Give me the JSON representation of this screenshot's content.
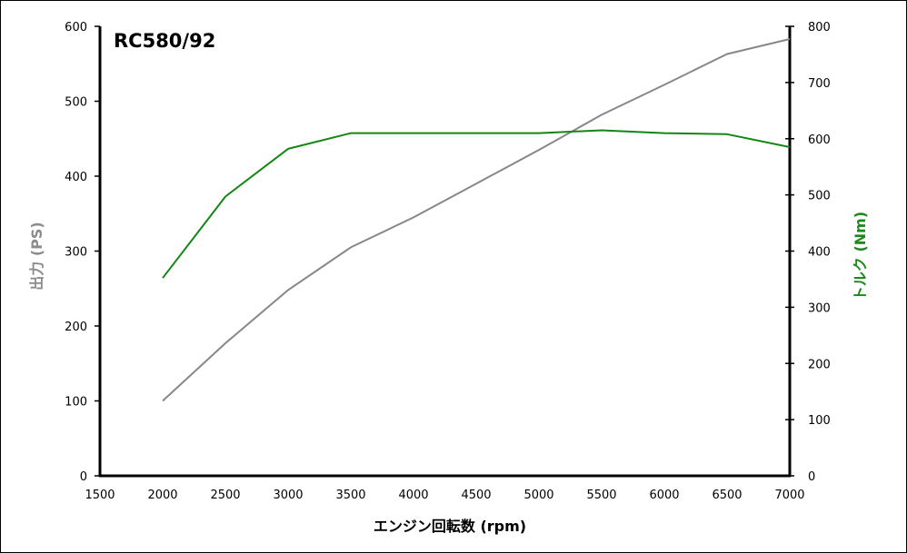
{
  "chart_data": {
    "type": "line",
    "title": "RC580/92",
    "xlabel": "エンジン回転数 (rpm)",
    "ylabel_left": "出力 (PS)",
    "ylabel_right": "トルク (Nm)",
    "xlim": [
      1500,
      7000
    ],
    "ylim_left": [
      0,
      600
    ],
    "ylim_right": [
      0,
      800
    ],
    "x_ticks": [
      1500,
      2000,
      2500,
      3000,
      3500,
      4000,
      4500,
      5000,
      5500,
      6000,
      6500,
      7000
    ],
    "y_left_ticks": [
      0,
      100,
      200,
      300,
      400,
      500,
      600
    ],
    "y_right_ticks": [
      0,
      100,
      200,
      300,
      400,
      500,
      600,
      700,
      800
    ],
    "grid": false,
    "legend": "none",
    "colors": {
      "power": "#878787",
      "torque": "#138613",
      "left_axis_title": "#8c8c8c",
      "right_axis_title": "#1a8a1a"
    },
    "series": [
      {
        "axis": "left",
        "x": [
          2000,
          2500,
          3000,
          3500,
          4000,
          4500,
          5000,
          5500,
          6000,
          6500,
          7000
        ],
        "values": [
          100,
          177,
          248,
          305,
          345,
          390,
          435,
          482,
          522,
          563,
          583
        ]
      },
      {
        "axis": "right",
        "x": [
          2000,
          2500,
          3000,
          3500,
          4000,
          4500,
          5000,
          5500,
          6000,
          6500,
          7000
        ],
        "values": [
          352,
          497,
          582,
          610,
          610,
          610,
          610,
          615,
          610,
          608,
          585
        ]
      }
    ]
  }
}
